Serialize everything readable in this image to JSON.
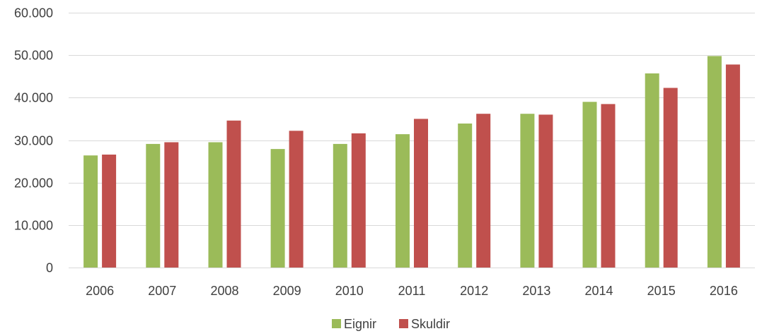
{
  "chart_data": {
    "type": "bar",
    "title": "",
    "xlabel": "",
    "ylabel": "",
    "categories": [
      "2006",
      "2007",
      "2008",
      "2009",
      "2010",
      "2011",
      "2012",
      "2013",
      "2014",
      "2015",
      "2016"
    ],
    "series": [
      {
        "name": "Eignir",
        "color": "#9bbb59",
        "values": [
          26400,
          29100,
          29500,
          27900,
          29100,
          31400,
          33900,
          36200,
          39000,
          45700,
          49800
        ]
      },
      {
        "name": "Skuldir",
        "color": "#c0504d",
        "values": [
          26600,
          29500,
          34600,
          32200,
          31600,
          35000,
          36200,
          36000,
          38500,
          42300,
          47800
        ]
      }
    ],
    "ylim": [
      0,
      60000
    ],
    "yticks": [
      0,
      10000,
      20000,
      30000,
      40000,
      50000,
      60000
    ],
    "ytick_labels": [
      "0",
      "10.000",
      "20.000",
      "30.000",
      "40.000",
      "50.000",
      "60.000"
    ],
    "grid": true,
    "legend_position": "bottom"
  }
}
